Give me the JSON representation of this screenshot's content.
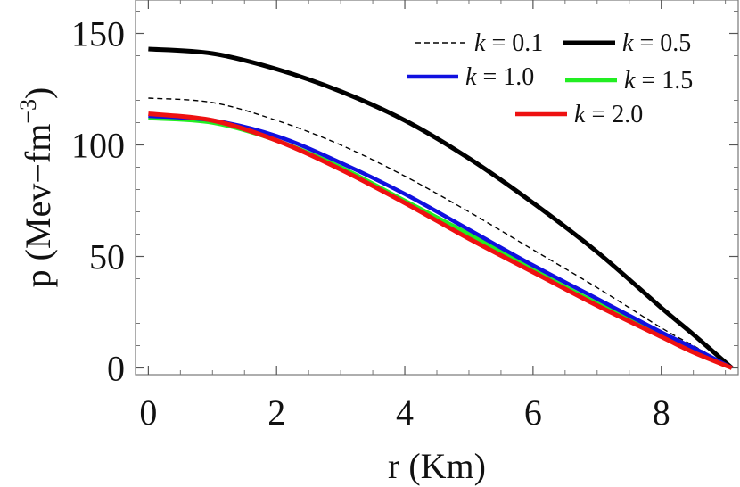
{
  "chart_data": {
    "type": "line",
    "xlabel": "r (Km)",
    "ylabel_main": "p (Mev−fm",
    "ylabel_sup": "−3",
    "ylabel_close": ")",
    "xlim": [
      -0.2,
      9.2
    ],
    "ylim": [
      -3,
      165
    ],
    "x_ticks": [
      0,
      2,
      4,
      6,
      8
    ],
    "y_ticks": [
      0,
      50,
      100,
      150
    ],
    "x_minor_step": 0.5,
    "y_minor_step": 10,
    "legend_position": "top-right",
    "legend_prefix": "k",
    "legend_eq": "=",
    "series": [
      {
        "label": "0.1",
        "color": "#000000",
        "style": "dashed",
        "x": [
          0,
          1,
          2,
          3,
          4,
          5,
          6,
          7,
          8,
          8.5,
          9.1
        ],
        "y": [
          121,
          119,
          111,
          100,
          86,
          70,
          53,
          36,
          18,
          10,
          0
        ]
      },
      {
        "label": "0.5",
        "color": "#000000",
        "style": "solid",
        "x": [
          0,
          1,
          2,
          3,
          4,
          5,
          6,
          7,
          8,
          8.5,
          9.1
        ],
        "y": [
          143,
          141,
          134,
          124,
          111,
          94,
          74,
          52,
          27,
          15,
          0
        ]
      },
      {
        "label": "1.0",
        "color": "#1010e0",
        "style": "solid",
        "x": [
          0,
          1,
          2,
          3,
          4,
          5,
          6,
          7,
          8,
          8.5,
          9.1
        ],
        "y": [
          113,
          111,
          104,
          92,
          78,
          62,
          46,
          31,
          16,
          9,
          0
        ]
      },
      {
        "label": "1.5",
        "color": "#22ee22",
        "style": "solid",
        "x": [
          0,
          1,
          2,
          3,
          4,
          5,
          6,
          7,
          8,
          8.5,
          9.1
        ],
        "y": [
          112,
          110,
          102,
          90,
          75,
          60,
          44,
          29,
          15,
          8,
          0
        ]
      },
      {
        "label": "2.0",
        "color": "#ee1111",
        "style": "solid",
        "x": [
          0,
          1,
          2,
          3,
          4,
          5,
          6,
          7,
          8,
          8.5,
          9.1
        ],
        "y": [
          114,
          111,
          102,
          89,
          74,
          58,
          43,
          28,
          14,
          7,
          0
        ]
      }
    ]
  }
}
